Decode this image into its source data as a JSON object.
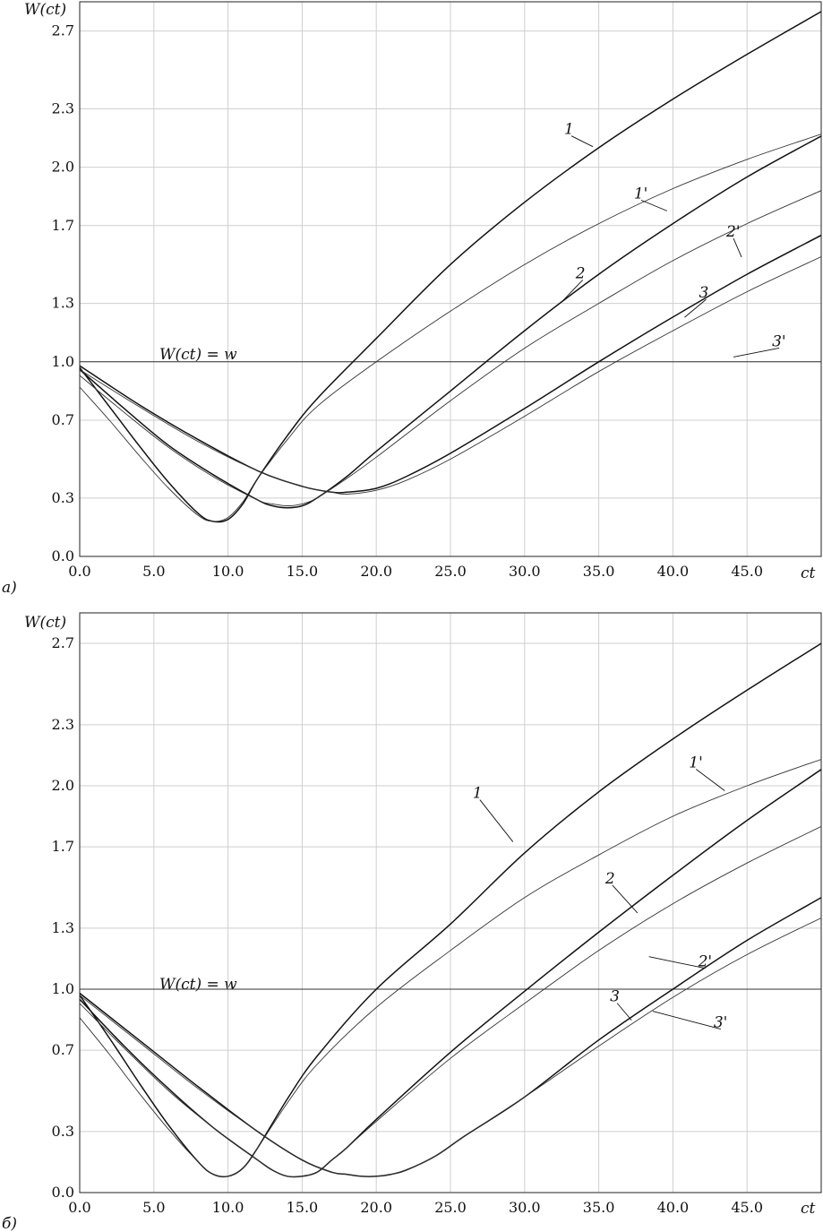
{
  "chart_data": [
    {
      "type": "line",
      "panel_label": "a)",
      "ylabel": "W(ct)",
      "xlabel": "ct",
      "x_ticks": [
        "0.0",
        "5.0",
        "10.0",
        "15.0",
        "20.0",
        "25.0",
        "30.0",
        "35.0",
        "40.0",
        "45.0"
      ],
      "y_ticks": [
        "0.0",
        "0.3",
        "0.7",
        "1.0",
        "1.3",
        "1.7",
        "2.0",
        "2.3",
        "2.7"
      ],
      "xlim": [
        0,
        50
      ],
      "ylim": [
        0,
        2.85
      ],
      "grid": true,
      "reference_line": {
        "y": 1.0,
        "label": "W(ct) = w"
      },
      "series": [
        {
          "name": "1",
          "weight": "thick",
          "x": [
            0,
            2,
            4,
            6,
            8,
            9,
            10,
            11,
            12,
            14,
            16,
            20,
            25,
            30,
            35,
            40,
            45,
            50
          ],
          "y": [
            0.97,
            0.77,
            0.57,
            0.38,
            0.22,
            0.18,
            0.19,
            0.27,
            0.4,
            0.62,
            0.81,
            1.12,
            1.5,
            1.82,
            2.1,
            2.35,
            2.58,
            2.8
          ]
        },
        {
          "name": "1'",
          "weight": "thin",
          "x": [
            0,
            2,
            4,
            6,
            8,
            9,
            10,
            11,
            12,
            14,
            16,
            20,
            25,
            30,
            35,
            40,
            45,
            50
          ],
          "y": [
            0.87,
            0.7,
            0.52,
            0.35,
            0.21,
            0.18,
            0.2,
            0.28,
            0.4,
            0.6,
            0.77,
            1.0,
            1.26,
            1.5,
            1.71,
            1.89,
            2.04,
            2.17
          ]
        },
        {
          "name": "2",
          "weight": "thick",
          "x": [
            0,
            3,
            6,
            9,
            12,
            13,
            14,
            15,
            16,
            18,
            20,
            25,
            30,
            35,
            40,
            45,
            50
          ],
          "y": [
            0.96,
            0.76,
            0.57,
            0.42,
            0.29,
            0.26,
            0.25,
            0.26,
            0.3,
            0.41,
            0.54,
            0.85,
            1.16,
            1.45,
            1.71,
            1.95,
            2.16
          ]
        },
        {
          "name": "2'",
          "weight": "thin",
          "x": [
            0,
            3,
            6,
            9,
            12,
            13,
            14,
            15,
            16,
            18,
            20,
            25,
            30,
            35,
            40,
            45,
            50
          ],
          "y": [
            0.93,
            0.74,
            0.56,
            0.41,
            0.29,
            0.27,
            0.26,
            0.27,
            0.3,
            0.4,
            0.51,
            0.8,
            1.07,
            1.3,
            1.52,
            1.71,
            1.88
          ]
        },
        {
          "name": "3",
          "weight": "thick",
          "x": [
            0,
            4,
            8,
            12,
            15,
            17,
            18,
            20,
            22,
            25,
            30,
            35,
            40,
            45,
            50
          ],
          "y": [
            0.98,
            0.78,
            0.6,
            0.44,
            0.36,
            0.33,
            0.33,
            0.35,
            0.41,
            0.53,
            0.76,
            1.0,
            1.23,
            1.45,
            1.65
          ]
        },
        {
          "name": "3'",
          "weight": "thin",
          "x": [
            0,
            4,
            8,
            12,
            15,
            17,
            18,
            20,
            22,
            25,
            30,
            35,
            40,
            45,
            50
          ],
          "y": [
            0.96,
            0.77,
            0.59,
            0.44,
            0.36,
            0.33,
            0.32,
            0.34,
            0.39,
            0.5,
            0.72,
            0.95,
            1.16,
            1.36,
            1.54
          ]
        }
      ],
      "annotations": [
        {
          "text": "1",
          "x": 34.0,
          "y": 2.17
        },
        {
          "text": "1'",
          "x": 38.7,
          "y": 1.84
        },
        {
          "text": "2",
          "x": 33.8,
          "y": 1.43
        },
        {
          "text": "2'",
          "x": 43.6,
          "y": 1.63
        },
        {
          "text": "3",
          "x": 42.0,
          "y": 1.33
        },
        {
          "text": "3'",
          "x": 46.2,
          "y": 1.08
        }
      ]
    },
    {
      "type": "line",
      "panel_label": "б)",
      "ylabel": "W(ct)",
      "xlabel": "ct",
      "x_ticks": [
        "0.0",
        "5.0",
        "10.0",
        "15.0",
        "20.0",
        "25.0",
        "30.0",
        "35.0",
        "40.0",
        "45.0"
      ],
      "y_ticks": [
        "0.0",
        "0.3",
        "0.7",
        "1.0",
        "1.3",
        "1.7",
        "2.0",
        "2.3",
        "2.7"
      ],
      "xlim": [
        0,
        50
      ],
      "ylim": [
        0,
        2.85
      ],
      "grid": true,
      "reference_line": {
        "y": 1.0,
        "label": "W(ct) = w"
      },
      "series": [
        {
          "name": "1",
          "weight": "thick",
          "x": [
            0,
            2,
            4,
            6,
            8,
            9,
            10,
            11,
            12,
            14,
            16,
            20,
            25,
            30,
            35,
            40,
            45,
            50
          ],
          "y": [
            0.97,
            0.76,
            0.54,
            0.33,
            0.15,
            0.09,
            0.08,
            0.12,
            0.22,
            0.46,
            0.67,
            1.0,
            1.32,
            1.67,
            1.97,
            2.23,
            2.47,
            2.7
          ]
        },
        {
          "name": "1'",
          "weight": "thin",
          "x": [
            0,
            2,
            4,
            6,
            8,
            9,
            10,
            11,
            12,
            14,
            16,
            20,
            25,
            30,
            35,
            40,
            45,
            50
          ],
          "y": [
            0.86,
            0.68,
            0.49,
            0.31,
            0.15,
            0.09,
            0.08,
            0.12,
            0.22,
            0.44,
            0.63,
            0.91,
            1.19,
            1.45,
            1.66,
            1.85,
            2.0,
            2.13
          ]
        },
        {
          "name": "2",
          "weight": "thick",
          "x": [
            0,
            3,
            6,
            9,
            12,
            13,
            14,
            15,
            16,
            17,
            18,
            20,
            25,
            30,
            35,
            40,
            45,
            50
          ],
          "y": [
            0.95,
            0.72,
            0.51,
            0.32,
            0.16,
            0.11,
            0.08,
            0.08,
            0.1,
            0.16,
            0.22,
            0.36,
            0.69,
            0.99,
            1.28,
            1.56,
            1.83,
            2.08
          ]
        },
        {
          "name": "2'",
          "weight": "thin",
          "x": [
            0,
            3,
            6,
            9,
            12,
            13,
            14,
            15,
            16,
            17,
            18,
            20,
            25,
            30,
            35,
            40,
            45,
            50
          ],
          "y": [
            0.93,
            0.71,
            0.5,
            0.32,
            0.16,
            0.11,
            0.08,
            0.08,
            0.1,
            0.16,
            0.22,
            0.35,
            0.66,
            0.93,
            1.19,
            1.42,
            1.62,
            1.8
          ]
        },
        {
          "name": "3",
          "weight": "thick",
          "x": [
            0,
            4,
            8,
            12,
            15,
            17,
            18,
            19,
            20,
            21,
            22,
            24,
            26,
            30,
            35,
            40,
            45,
            50
          ],
          "y": [
            0.98,
            0.75,
            0.52,
            0.3,
            0.16,
            0.1,
            0.09,
            0.08,
            0.08,
            0.09,
            0.11,
            0.18,
            0.28,
            0.47,
            0.75,
            1.0,
            1.24,
            1.45
          ]
        },
        {
          "name": "3'",
          "weight": "thin",
          "x": [
            0,
            4,
            8,
            12,
            15,
            17,
            18,
            19,
            20,
            21,
            22,
            24,
            26,
            30,
            35,
            40,
            45,
            50
          ],
          "y": [
            0.97,
            0.74,
            0.51,
            0.3,
            0.16,
            0.1,
            0.09,
            0.08,
            0.08,
            0.09,
            0.11,
            0.18,
            0.28,
            0.47,
            0.72,
            0.96,
            1.17,
            1.35
          ]
        }
      ],
      "annotations": [
        {
          "text": "1",
          "x": 26.8,
          "y": 1.94
        },
        {
          "text": "1'",
          "x": 41.2,
          "y": 2.09
        },
        {
          "text": "2",
          "x": 35.8,
          "y": 1.52
        },
        {
          "text": "2'",
          "x": 41.1,
          "y": 1.12
        },
        {
          "text": "3",
          "x": 36.0,
          "y": 0.94
        },
        {
          "text": "3'",
          "x": 41.9,
          "y": 0.83
        }
      ]
    }
  ]
}
